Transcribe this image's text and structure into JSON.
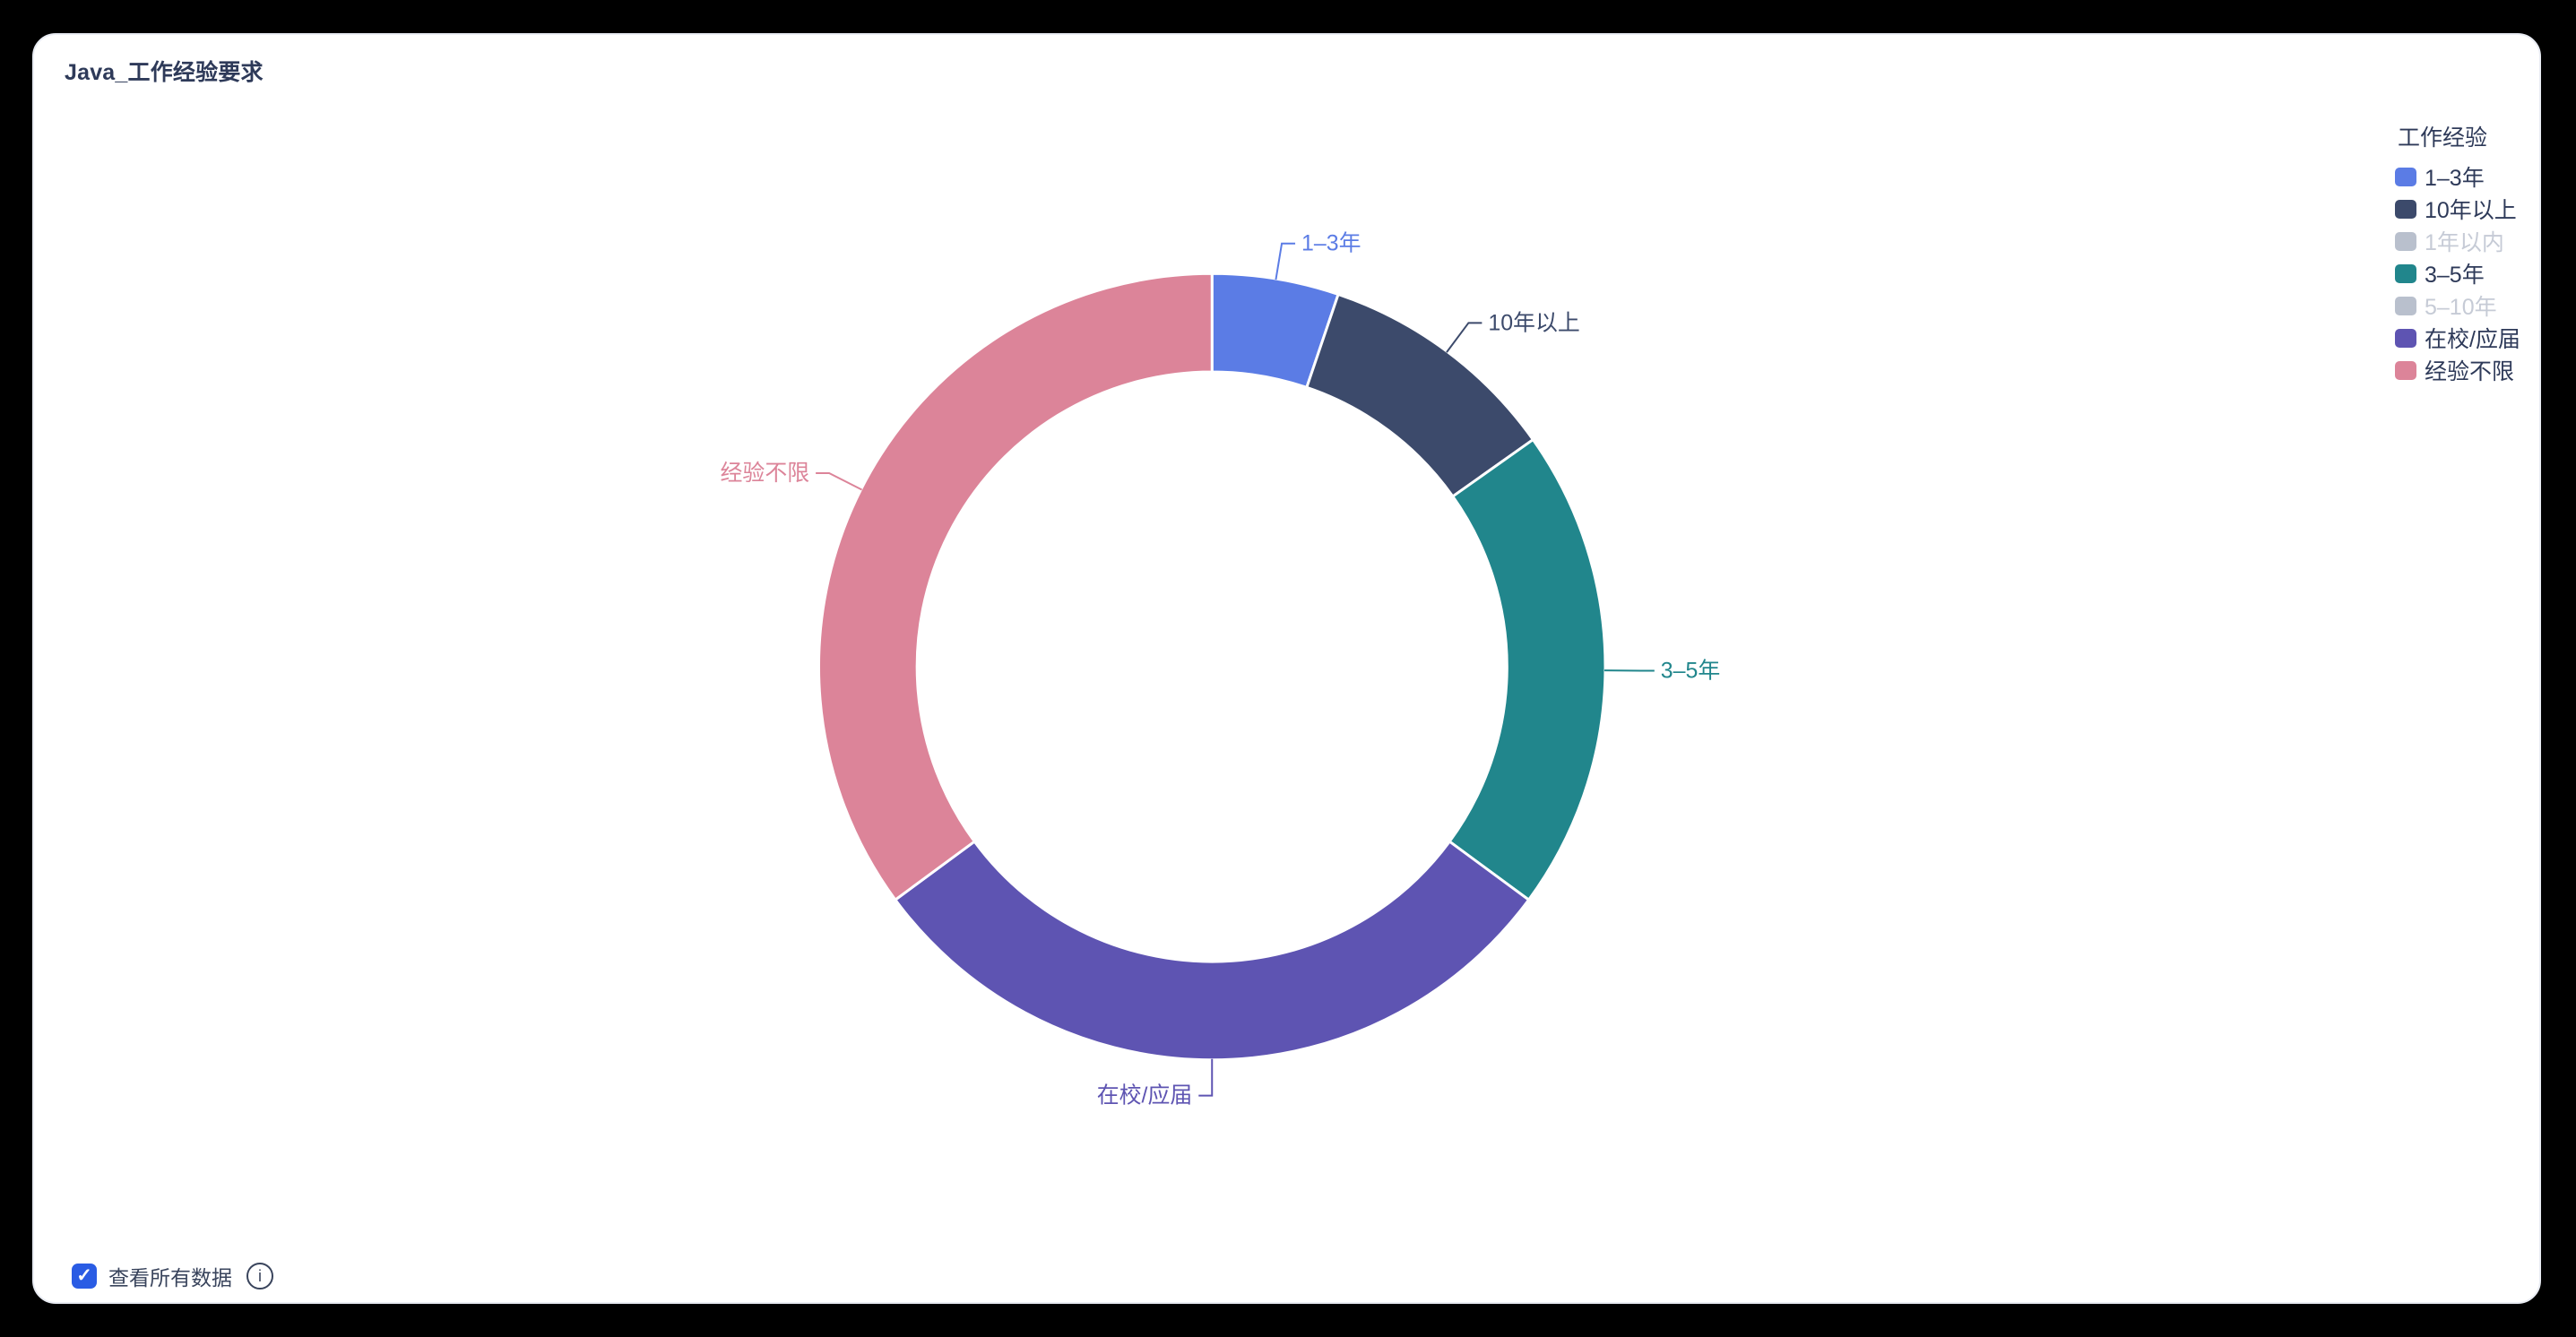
{
  "page": {
    "background": "#000000",
    "card_background": "#ffffff",
    "card_border": "#E9ECF3"
  },
  "header": {
    "title": "Java_工作经验要求"
  },
  "legend": {
    "title": "工作经验",
    "items": [
      {
        "label": "1–3年",
        "color": "#5B7CE5",
        "enabled": true
      },
      {
        "label": "10年以上",
        "color": "#3C4A6B",
        "enabled": true
      },
      {
        "label": "1年以内",
        "color": "#B9C0CD",
        "enabled": false
      },
      {
        "label": "3–5年",
        "color": "#21868C",
        "enabled": true
      },
      {
        "label": "5–10年",
        "color": "#B9C0CD",
        "enabled": false
      },
      {
        "label": "在校/应届",
        "color": "#5E54B2",
        "enabled": true
      },
      {
        "label": "经验不限",
        "color": "#DC8499",
        "enabled": true
      }
    ]
  },
  "chart_data": {
    "type": "pie",
    "subtype": "donut",
    "title": "Java_工作经验要求",
    "legend_title": "工作经验",
    "legend_position": "top-right",
    "start_angle_deg": 0,
    "clockwise": true,
    "inner_radius_ratio": 0.75,
    "note": "no numeric labels shown in chart; percentages estimated from arc angles",
    "slices": [
      {
        "label": "1–3年",
        "value_pct": 5.2,
        "color": "#5B7CE5",
        "label_side": "right"
      },
      {
        "label": "10年以上",
        "value_pct": 10.0,
        "color": "#3C4A6B",
        "label_side": "right"
      },
      {
        "label": "3–5年",
        "value_pct": 19.9,
        "color": "#21868C",
        "label_side": "right"
      },
      {
        "label": "在校/应届",
        "value_pct": 29.8,
        "color": "#5E54B2",
        "label_side": "left"
      },
      {
        "label": "经验不限",
        "value_pct": 35.1,
        "color": "#DC8499",
        "label_side": "left"
      }
    ],
    "disabled_categories": [
      "1年以内",
      "5–10年"
    ]
  },
  "footer": {
    "checkbox_label": "查看所有数据",
    "checkbox_checked": true,
    "checkbox_color": "#2A5CE4",
    "check_glyph": "✓",
    "info_glyph": "i"
  },
  "colors": {
    "text_dark": "#2E3A59",
    "text_disabled": "#C6CBD6",
    "footer_text": "#39445C"
  }
}
